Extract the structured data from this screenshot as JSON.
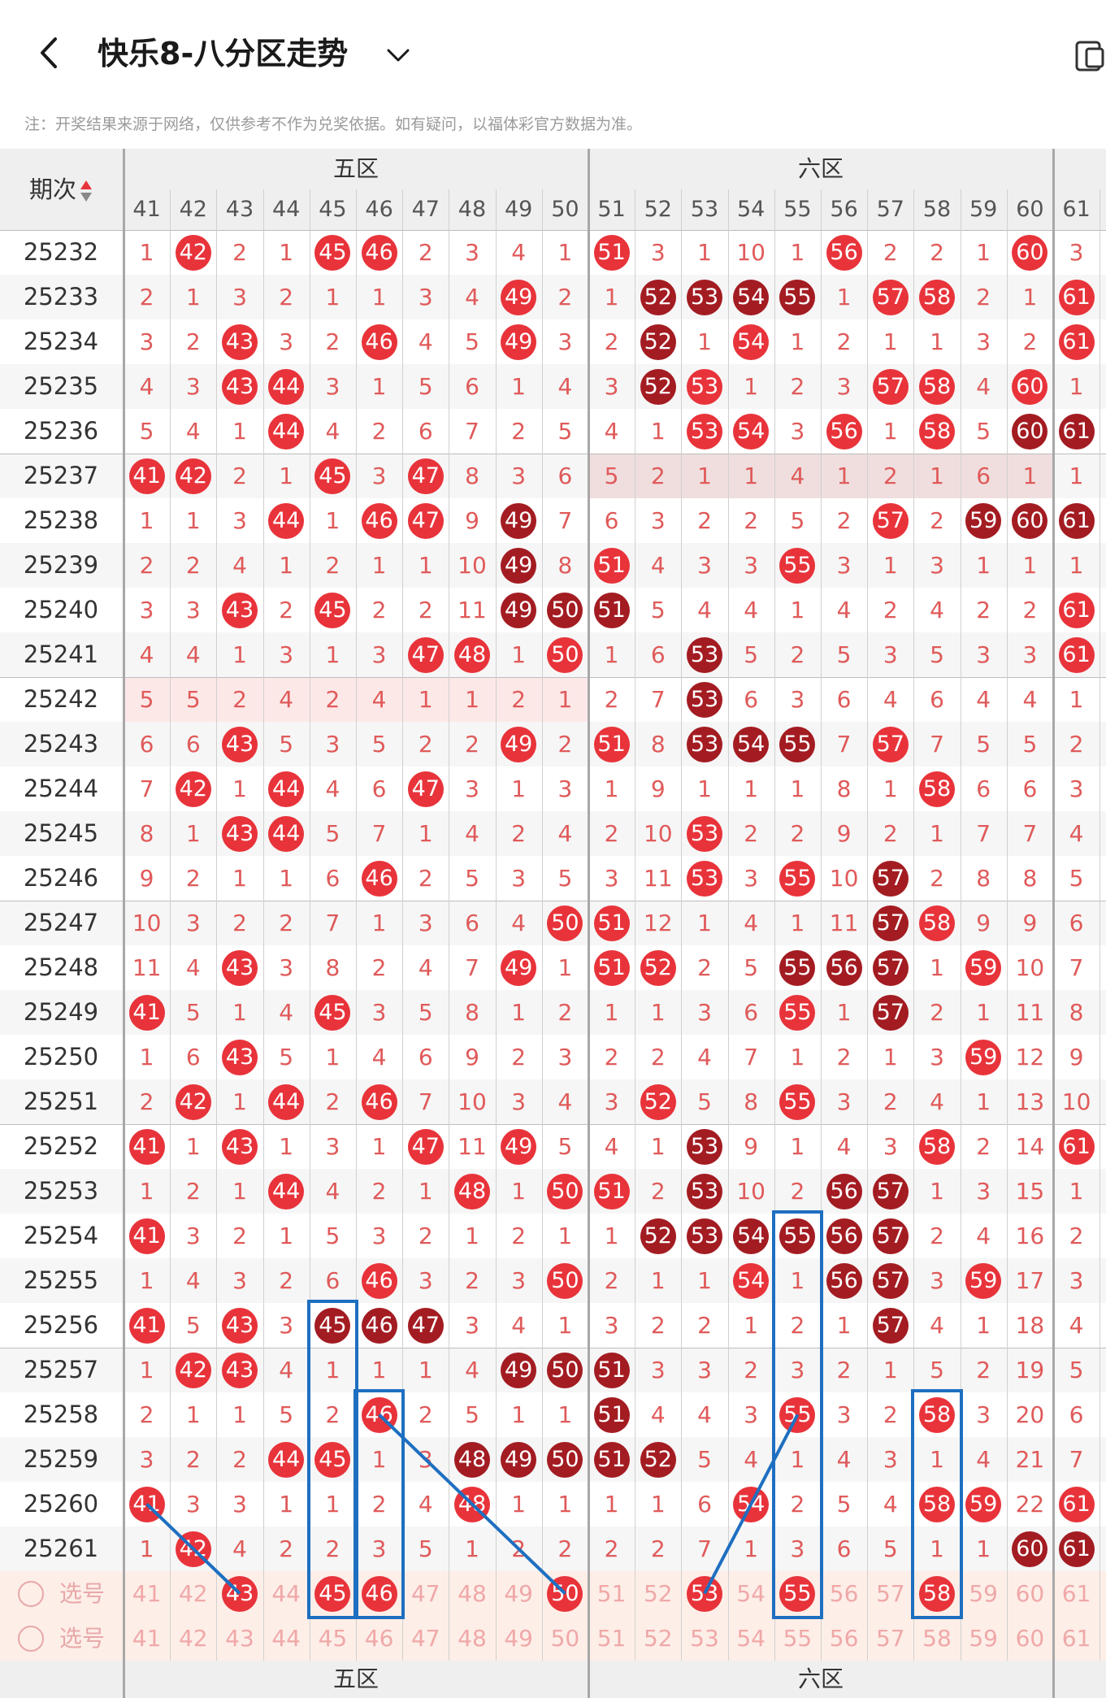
{
  "header": {
    "title": "快乐8-八分区走势",
    "back_icon": "back-arrow-icon",
    "dropdown_icon": "chevron-down-icon",
    "right_icon": "device-toggle-icon"
  },
  "notice": "注：开奖结果来源于网络，仅供参考不作为兑奖依据。如有疑问，以福体彩官方数据为准。",
  "table": {
    "period_header": "期次",
    "sort_icon": "sort-arrows-icon",
    "zones": [
      {
        "name": "五区",
        "numbers": [
          "41",
          "42",
          "43",
          "44",
          "45",
          "46",
          "47",
          "48",
          "49",
          "50"
        ]
      },
      {
        "name": "六区",
        "numbers": [
          "51",
          "52",
          "53",
          "54",
          "55",
          "56",
          "57",
          "58",
          "59",
          "60"
        ]
      }
    ],
    "extra_column": "61",
    "colors": {
      "hit": "#e8333a",
      "hit_consecutive": "#a31c22",
      "miss_text": "#e05a5a",
      "header_bg": "#efefef",
      "selection_bg": "#fdeee8",
      "line_color": "#1e6fc0"
    },
    "rows": [
      {
        "period": "25232",
        "cells": [
          "1",
          "H42",
          "2",
          "1",
          "H45",
          "H46",
          "2",
          "3",
          "4",
          "1",
          "H51",
          "3",
          "1",
          "10",
          "1",
          "H56",
          "2",
          "2",
          "1",
          "H60",
          "3"
        ]
      },
      {
        "period": "25233",
        "cells": [
          "2",
          "1",
          "3",
          "2",
          "1",
          "1",
          "3",
          "4",
          "H49",
          "2",
          "1",
          "D52",
          "D53",
          "D54",
          "D55",
          "1",
          "H57",
          "H58",
          "2",
          "1",
          "H61"
        ]
      },
      {
        "period": "25234",
        "cells": [
          "3",
          "2",
          "H43",
          "3",
          "2",
          "H46",
          "4",
          "5",
          "H49",
          "3",
          "2",
          "D52",
          "1",
          "H54",
          "1",
          "2",
          "1",
          "1",
          "3",
          "2",
          "H61"
        ]
      },
      {
        "period": "25235",
        "cells": [
          "4",
          "3",
          "H43",
          "H44",
          "3",
          "1",
          "5",
          "6",
          "1",
          "4",
          "3",
          "D52",
          "H53",
          "1",
          "2",
          "3",
          "H57",
          "H58",
          "4",
          "H60",
          "1"
        ]
      },
      {
        "period": "25236",
        "cells": [
          "5",
          "4",
          "1",
          "H44",
          "4",
          "2",
          "6",
          "7",
          "2",
          "5",
          "4",
          "1",
          "H53",
          "H54",
          "3",
          "H56",
          "1",
          "H58",
          "5",
          "D60",
          "D61"
        ]
      },
      {
        "period": "25237",
        "cells": [
          "H41",
          "H42",
          "2",
          "1",
          "H45",
          "3",
          "H47",
          "8",
          "3",
          "6",
          "5",
          "2",
          "1",
          "1",
          "4",
          "1",
          "2",
          "1",
          "6",
          "1",
          "1"
        ]
      },
      {
        "period": "25238",
        "cells": [
          "1",
          "1",
          "3",
          "H44",
          "1",
          "H46",
          "H47",
          "9",
          "D49",
          "7",
          "6",
          "3",
          "2",
          "2",
          "5",
          "2",
          "H57",
          "2",
          "D59",
          "D60",
          "D61"
        ]
      },
      {
        "period": "25239",
        "cells": [
          "2",
          "2",
          "4",
          "1",
          "2",
          "1",
          "1",
          "10",
          "D49",
          "8",
          "H51",
          "4",
          "3",
          "3",
          "H55",
          "3",
          "1",
          "3",
          "1",
          "1",
          "1"
        ]
      },
      {
        "period": "25240",
        "cells": [
          "3",
          "3",
          "H43",
          "2",
          "H45",
          "2",
          "2",
          "11",
          "D49",
          "D50",
          "D51",
          "5",
          "4",
          "4",
          "1",
          "4",
          "2",
          "4",
          "2",
          "2",
          "H61"
        ]
      },
      {
        "period": "25241",
        "cells": [
          "4",
          "4",
          "1",
          "3",
          "1",
          "3",
          "H47",
          "H48",
          "1",
          "H50",
          "1",
          "6",
          "D53",
          "5",
          "2",
          "5",
          "3",
          "5",
          "3",
          "3",
          "H61"
        ]
      },
      {
        "period": "25242",
        "cells": [
          "5",
          "5",
          "2",
          "4",
          "2",
          "4",
          "1",
          "1",
          "2",
          "1",
          "2",
          "7",
          "D53",
          "6",
          "3",
          "6",
          "4",
          "6",
          "4",
          "4",
          "1"
        ]
      },
      {
        "period": "25243",
        "cells": [
          "6",
          "6",
          "H43",
          "5",
          "3",
          "5",
          "2",
          "2",
          "H49",
          "2",
          "H51",
          "8",
          "D53",
          "D54",
          "D55",
          "7",
          "H57",
          "7",
          "5",
          "5",
          "2"
        ]
      },
      {
        "period": "25244",
        "cells": [
          "7",
          "H42",
          "1",
          "H44",
          "4",
          "6",
          "H47",
          "3",
          "1",
          "3",
          "1",
          "9",
          "1",
          "1",
          "1",
          "8",
          "1",
          "H58",
          "6",
          "6",
          "3"
        ]
      },
      {
        "period": "25245",
        "cells": [
          "8",
          "1",
          "H43",
          "H44",
          "5",
          "7",
          "1",
          "4",
          "2",
          "4",
          "2",
          "10",
          "H53",
          "2",
          "2",
          "9",
          "2",
          "1",
          "7",
          "7",
          "4"
        ]
      },
      {
        "period": "25246",
        "cells": [
          "9",
          "2",
          "1",
          "1",
          "6",
          "H46",
          "2",
          "5",
          "3",
          "5",
          "3",
          "11",
          "H53",
          "3",
          "H55",
          "10",
          "D57",
          "2",
          "8",
          "8",
          "5"
        ]
      },
      {
        "period": "25247",
        "cells": [
          "10",
          "3",
          "2",
          "2",
          "7",
          "1",
          "3",
          "6",
          "4",
          "H50",
          "H51",
          "12",
          "1",
          "4",
          "1",
          "11",
          "D57",
          "H58",
          "9",
          "9",
          "6"
        ]
      },
      {
        "period": "25248",
        "cells": [
          "11",
          "4",
          "H43",
          "3",
          "8",
          "2",
          "4",
          "7",
          "H49",
          "1",
          "H51",
          "H52",
          "2",
          "5",
          "D55",
          "D56",
          "D57",
          "1",
          "H59",
          "10",
          "7"
        ]
      },
      {
        "period": "25249",
        "cells": [
          "H41",
          "5",
          "1",
          "4",
          "H45",
          "3",
          "5",
          "8",
          "1",
          "2",
          "1",
          "1",
          "3",
          "6",
          "H55",
          "1",
          "D57",
          "2",
          "1",
          "11",
          "8"
        ]
      },
      {
        "period": "25250",
        "cells": [
          "1",
          "6",
          "H43",
          "5",
          "1",
          "4",
          "6",
          "9",
          "2",
          "3",
          "2",
          "2",
          "4",
          "7",
          "1",
          "2",
          "1",
          "3",
          "H59",
          "12",
          "9"
        ]
      },
      {
        "period": "25251",
        "cells": [
          "2",
          "H42",
          "1",
          "H44",
          "2",
          "H46",
          "7",
          "10",
          "3",
          "4",
          "3",
          "H52",
          "5",
          "8",
          "H55",
          "3",
          "2",
          "4",
          "1",
          "13",
          "10"
        ]
      },
      {
        "period": "25252",
        "cells": [
          "H41",
          "1",
          "H43",
          "1",
          "3",
          "1",
          "H47",
          "11",
          "H49",
          "5",
          "4",
          "1",
          "D53",
          "9",
          "1",
          "4",
          "3",
          "H58",
          "2",
          "14",
          "H61"
        ]
      },
      {
        "period": "25253",
        "cells": [
          "1",
          "2",
          "1",
          "H44",
          "4",
          "2",
          "1",
          "H48",
          "1",
          "H50",
          "H51",
          "2",
          "D53",
          "10",
          "2",
          "D56",
          "D57",
          "1",
          "3",
          "15",
          "1"
        ]
      },
      {
        "period": "25254",
        "cells": [
          "H41",
          "3",
          "2",
          "1",
          "5",
          "3",
          "2",
          "1",
          "2",
          "1",
          "1",
          "D52",
          "D53",
          "D54",
          "D55",
          "D56",
          "D57",
          "2",
          "4",
          "16",
          "2"
        ]
      },
      {
        "period": "25255",
        "cells": [
          "1",
          "4",
          "3",
          "2",
          "6",
          "H46",
          "3",
          "2",
          "3",
          "H50",
          "2",
          "1",
          "1",
          "H54",
          "1",
          "D56",
          "D57",
          "3",
          "H59",
          "17",
          "3"
        ]
      },
      {
        "period": "25256",
        "cells": [
          "H41",
          "5",
          "H43",
          "3",
          "D45",
          "D46",
          "D47",
          "3",
          "4",
          "1",
          "3",
          "2",
          "2",
          "1",
          "2",
          "1",
          "D57",
          "4",
          "1",
          "18",
          "4"
        ]
      },
      {
        "period": "25257",
        "cells": [
          "1",
          "H42",
          "H43",
          "4",
          "1",
          "1",
          "1",
          "4",
          "D49",
          "D50",
          "D51",
          "3",
          "3",
          "2",
          "3",
          "2",
          "1",
          "5",
          "2",
          "19",
          "5"
        ]
      },
      {
        "period": "25258",
        "cells": [
          "2",
          "1",
          "1",
          "5",
          "2",
          "H46",
          "2",
          "5",
          "1",
          "1",
          "D51",
          "4",
          "4",
          "3",
          "H55",
          "3",
          "2",
          "H58",
          "3",
          "20",
          "6"
        ]
      },
      {
        "period": "25259",
        "cells": [
          "3",
          "2",
          "2",
          "H44",
          "H45",
          "1",
          "3",
          "D48",
          "D49",
          "D50",
          "D51",
          "D52",
          "5",
          "4",
          "1",
          "4",
          "3",
          "1",
          "4",
          "21",
          "7"
        ]
      },
      {
        "period": "25260",
        "cells": [
          "H41",
          "3",
          "3",
          "1",
          "1",
          "2",
          "4",
          "H48",
          "1",
          "1",
          "1",
          "1",
          "6",
          "H54",
          "2",
          "5",
          "4",
          "H58",
          "H59",
          "22",
          "H61"
        ]
      },
      {
        "period": "25261",
        "cells": [
          "1",
          "H42",
          "4",
          "2",
          "2",
          "3",
          "5",
          "1",
          "2",
          "2",
          "2",
          "2",
          "7",
          "1",
          "3",
          "6",
          "5",
          "1",
          "1",
          "D60",
          "D61"
        ]
      }
    ],
    "selection_rows": [
      {
        "label": "选号",
        "selected": [
          "43",
          "45",
          "46",
          "50",
          "53",
          "55",
          "58"
        ]
      },
      {
        "label": "选号",
        "selected": []
      }
    ],
    "trend_lines": [
      {
        "from": [
          "25260",
          "41"
        ],
        "to": [
          "select1",
          "43"
        ]
      },
      {
        "from": [
          "25258",
          "46"
        ],
        "to": [
          "select1",
          "50"
        ]
      },
      {
        "from": [
          "select1",
          "53"
        ],
        "to": [
          "25258",
          "55"
        ]
      }
    ],
    "highlight_boxes": [
      {
        "column": "45",
        "from": "25256",
        "to": "select1"
      },
      {
        "column": "46",
        "from": "25258",
        "to": "select1"
      },
      {
        "column": "55",
        "from": "25254",
        "to": "select1"
      },
      {
        "column": "58",
        "from": "25258",
        "to": "select1"
      }
    ]
  }
}
